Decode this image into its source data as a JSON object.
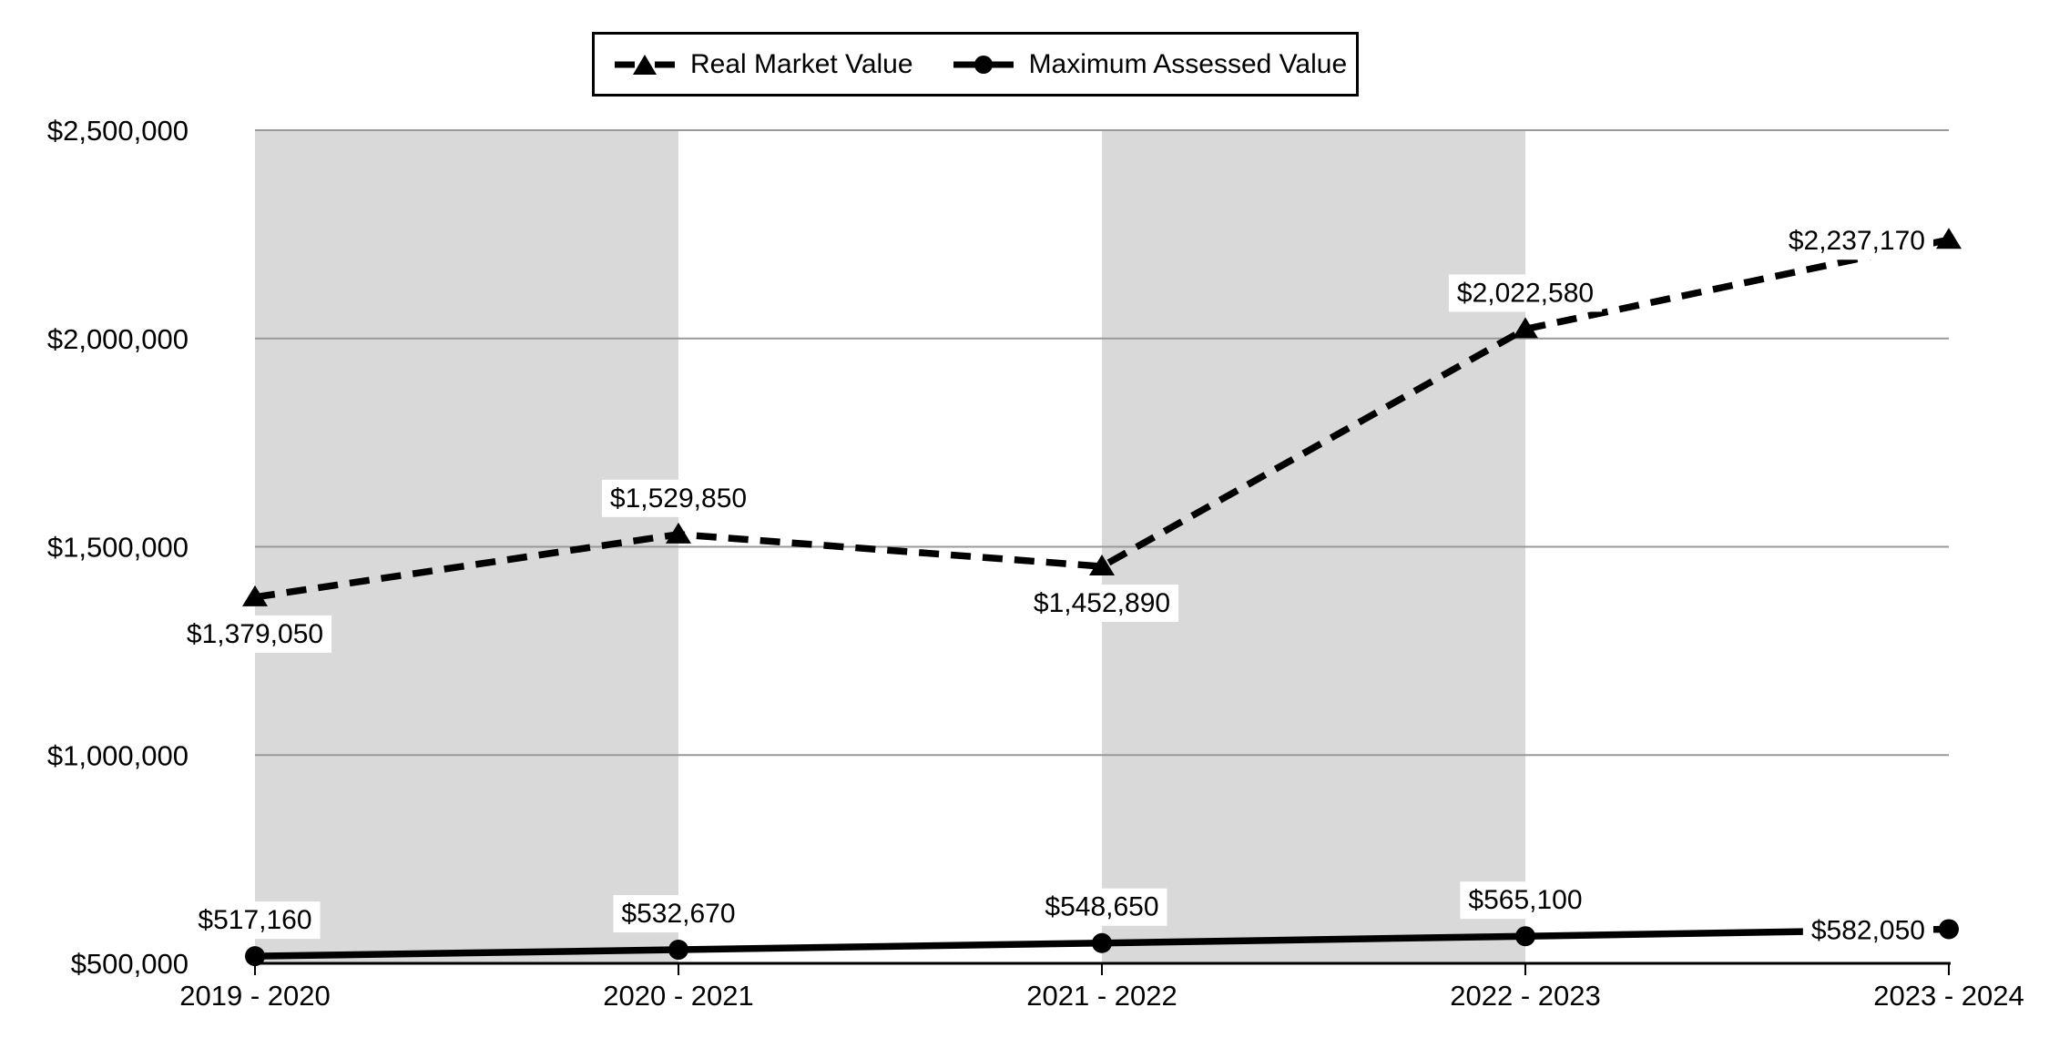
{
  "chart_data": {
    "type": "line",
    "title": "",
    "categories": [
      "2019 - 2020",
      "2020 - 2021",
      "2021 - 2022",
      "2022 - 2023",
      "2023 - 2024"
    ],
    "series": [
      {
        "name": "Real Market Value",
        "line_style": "dashed",
        "marker": "triangle",
        "values": [
          1379050,
          1529850,
          1452890,
          2022580,
          2237170
        ],
        "labels": [
          "$1,379,050",
          "$1,529,850",
          "$1,452,890",
          "$2,022,580",
          "$2,237,170"
        ],
        "label_placement": [
          "below",
          "above",
          "below",
          "above",
          "left"
        ]
      },
      {
        "name": "Maximum Assessed Value",
        "line_style": "solid",
        "marker": "circle",
        "values": [
          517160,
          532670,
          548650,
          565100,
          582050
        ],
        "labels": [
          "$517,160",
          "$532,670",
          "$548,650",
          "$565,100",
          "$582,050"
        ],
        "label_placement": [
          "above",
          "above",
          "above",
          "above",
          "left"
        ]
      }
    ],
    "y_axis": {
      "min": 500000,
      "max": 2500000,
      "step": 500000,
      "tick_labels": [
        "$500,000",
        "$1,000,000",
        "$1,500,000",
        "$2,000,000",
        "$2,500,000"
      ]
    },
    "x_axis": {
      "tick_labels": [
        "2019 - 2020",
        "2020 - 2021",
        "2021 - 2022",
        "2022 - 2023",
        "2023 - 2024"
      ]
    },
    "shaded_band_pairs": [
      [
        0,
        1
      ],
      [
        2,
        3
      ]
    ],
    "grid": true,
    "legend_position": "top",
    "colors": {
      "series": "#000000",
      "gridline": "#999999",
      "band": "#D9D9D9",
      "axis": "#000000",
      "label_background": "#FFFFFF",
      "text": "#000000",
      "background": "#FFFFFF"
    }
  }
}
